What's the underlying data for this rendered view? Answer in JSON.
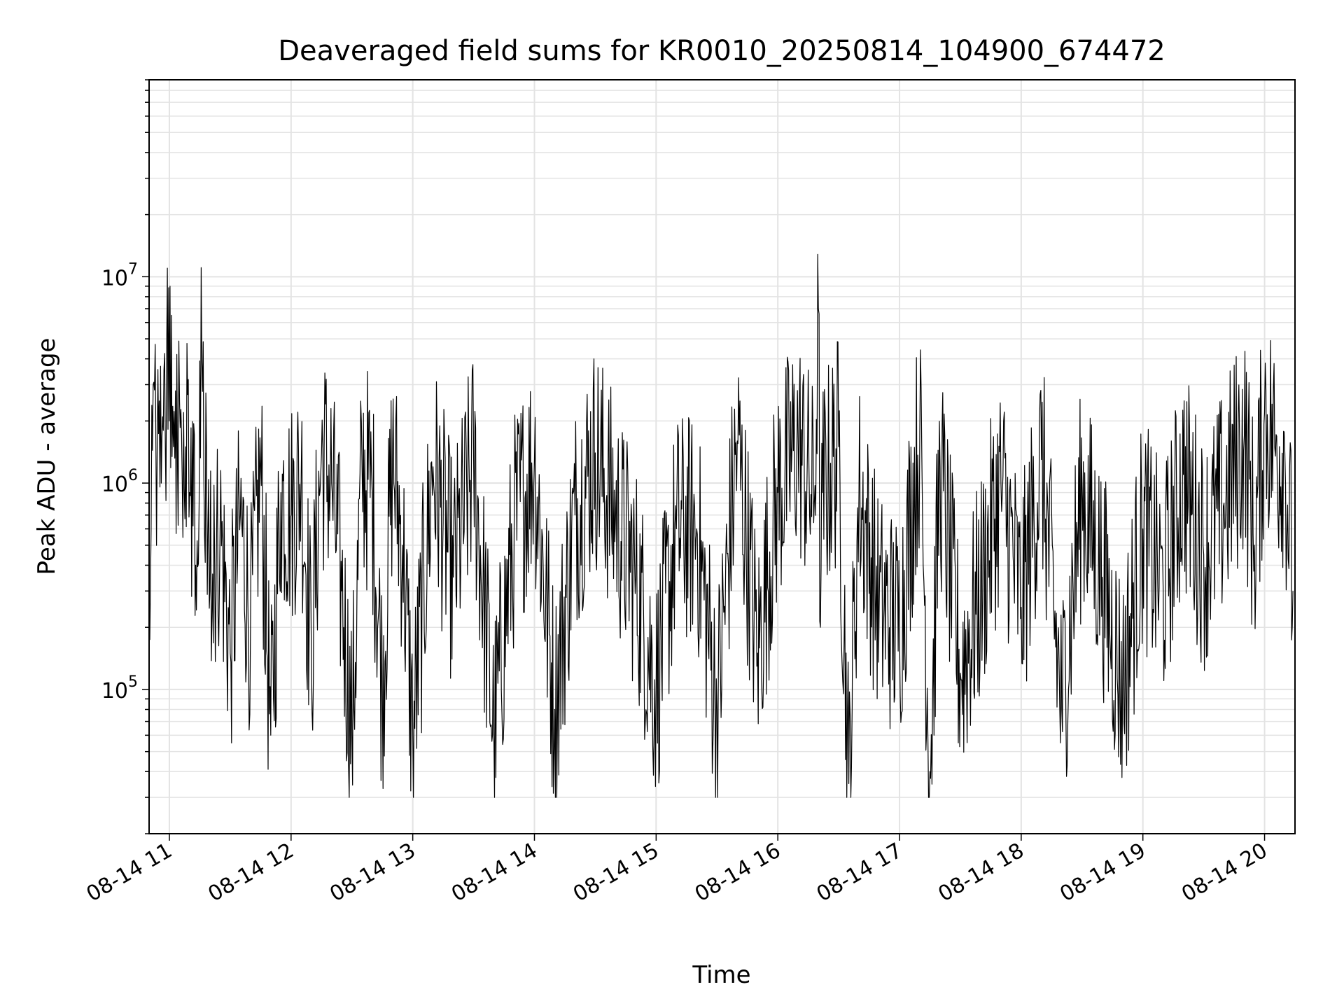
{
  "chart_data": {
    "type": "line",
    "title": "Deaveraged field sums for KR0010_20250814_104900_674472",
    "xlabel": "Time",
    "ylabel": "Peak ADU - average",
    "y_scale": "log",
    "ylim": [
      20000,
      90000000
    ],
    "xlim": [
      "2025-08-14T10:50",
      "2025-08-14T20:15"
    ],
    "grid": true,
    "line_color": "#000000",
    "x_tick_labels": [
      "08-14 11",
      "08-14 12",
      "08-14 13",
      "08-14 14",
      "08-14 15",
      "08-14 16",
      "08-14 17",
      "08-14 18",
      "08-14 19",
      "08-14 20"
    ],
    "y_tick_labels": [
      {
        "value": 100000,
        "base": "10",
        "exp": "5"
      },
      {
        "value": 1000000,
        "base": "10",
        "exp": "6"
      },
      {
        "value": 10000000,
        "base": "10",
        "exp": "7"
      }
    ],
    "series": [
      {
        "x": [
          "2025-08-14T10:50",
          "2025-08-14T10:52",
          "2025-08-14T10:54",
          "2025-08-14T10:55",
          "2025-08-14T10:56",
          "2025-08-14T10:57",
          "2025-08-14T10:58",
          "2025-08-14T10:59",
          "2025-08-14T11:00",
          "2025-08-14T11:01",
          "2025-08-14T11:02",
          "2025-08-14T11:03",
          "2025-08-14T11:04",
          "2025-08-14T11:05",
          "2025-08-14T11:06",
          "2025-08-14T11:07",
          "2025-08-14T11:08",
          "2025-08-14T11:10",
          "2025-08-14T11:13",
          "2025-08-14T11:16",
          "2025-08-14T11:20",
          "2025-08-14T11:25",
          "2025-08-14T11:30",
          "2025-08-14T11:35",
          "2025-08-14T11:40",
          "2025-08-14T11:45",
          "2025-08-14T11:50",
          "2025-08-14T11:55",
          "2025-08-14T12:00",
          "2025-08-14T12:05",
          "2025-08-14T12:10",
          "2025-08-14T12:15",
          "2025-08-14T12:20",
          "2025-08-14T12:25",
          "2025-08-14T12:30",
          "2025-08-14T12:35",
          "2025-08-14T12:40",
          "2025-08-14T12:45",
          "2025-08-14T12:50",
          "2025-08-14T12:55",
          "2025-08-14T13:00",
          "2025-08-14T13:10",
          "2025-08-14T13:20",
          "2025-08-14T13:30",
          "2025-08-14T13:40",
          "2025-08-14T13:50",
          "2025-08-14T14:00",
          "2025-08-14T14:10",
          "2025-08-14T14:20",
          "2025-08-14T14:30",
          "2025-08-14T14:40",
          "2025-08-14T14:50",
          "2025-08-14T15:00",
          "2025-08-14T15:10",
          "2025-08-14T15:20",
          "2025-08-14T15:30",
          "2025-08-14T15:40",
          "2025-08-14T15:50",
          "2025-08-14T16:00",
          "2025-08-14T16:10",
          "2025-08-14T16:18",
          "2025-08-14T16:20",
          "2025-08-14T16:21",
          "2025-08-14T16:22",
          "2025-08-14T16:30",
          "2025-08-14T16:35",
          "2025-08-14T16:40",
          "2025-08-14T16:50",
          "2025-08-14T17:00",
          "2025-08-14T17:10",
          "2025-08-14T17:15",
          "2025-08-14T17:20",
          "2025-08-14T17:30",
          "2025-08-14T17:40",
          "2025-08-14T17:50",
          "2025-08-14T18:00",
          "2025-08-14T18:10",
          "2025-08-14T18:20",
          "2025-08-14T18:30",
          "2025-08-14T18:40",
          "2025-08-14T18:50",
          "2025-08-14T19:00",
          "2025-08-14T19:10",
          "2025-08-14T19:20",
          "2025-08-14T19:30",
          "2025-08-14T19:40",
          "2025-08-14T19:50",
          "2025-08-14T19:55",
          "2025-08-14T20:00",
          "2025-08-14T20:05",
          "2025-08-14T20:10",
          "2025-08-14T20:14"
        ],
        "y": [
          350000,
          3000000,
          1500000,
          2500000,
          1000000,
          1800000,
          1500000,
          11000000,
          2000000,
          6500000,
          1500000,
          2800000,
          1200000,
          2500000,
          1700000,
          2200000,
          1500000,
          900000,
          400000,
          4000000,
          300000,
          600000,
          150000,
          700000,
          200000,
          1200000,
          60000,
          900000,
          700000,
          1100000,
          150000,
          1400000,
          1000000,
          300000,
          60000,
          1200000,
          900000,
          100000,
          1300000,
          500000,
          60000,
          1200000,
          350000,
          1300000,
          60000,
          600000,
          1300000,
          80000,
          700000,
          1400000,
          700000,
          350000,
          100000,
          600000,
          600000,
          80000,
          1600000,
          150000,
          900000,
          1600000,
          800000,
          7000000,
          200000,
          900000,
          1500000,
          35000,
          900000,
          250000,
          200000,
          1800000,
          40000,
          1200000,
          120000,
          300000,
          1000000,
          250000,
          1300000,
          80000,
          900000,
          350000,
          100000,
          600000,
          300000,
          1100000,
          450000,
          800000,
          1700000,
          500000,
          2200000,
          1500000,
          1400000,
          300000
        ],
        "noise_seed": 674472
      }
    ]
  }
}
